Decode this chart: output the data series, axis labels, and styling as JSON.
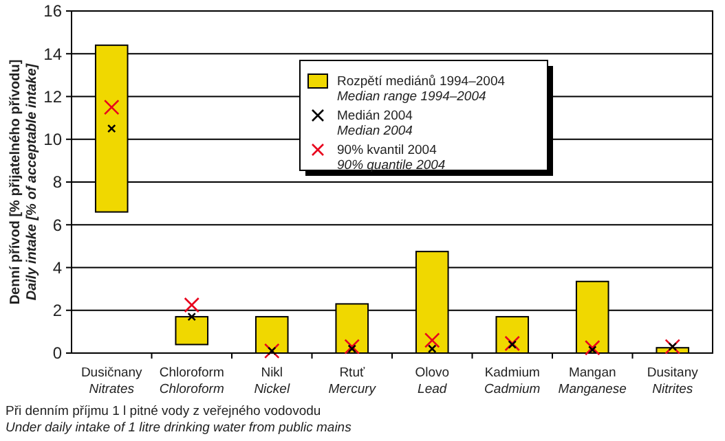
{
  "chart_data": {
    "type": "bar",
    "ylabel": "Denní přívod [% přijatelného přívodu]\nDaily intake [% of acceptable intake]",
    "categories": [
      "Dusičnany\nNitrates",
      "Chloroform\nChloroform",
      "Nikl\nNickel",
      "Rtuť\nMercury",
      "Olovo\nLead",
      "Kadmium\nCadmium",
      "Mangan\nManganese",
      "Dusitany\nNitrites"
    ],
    "series": [
      {
        "name": "Rozpětí mediánů 1994–2004\nMedian range 1994–2004",
        "color": "#f0d800",
        "base": [
          6.6,
          0.4,
          0,
          0,
          0,
          0,
          0,
          0
        ],
        "values": [
          7.8,
          1.3,
          1.7,
          2.3,
          4.75,
          1.7,
          3.35,
          0.25
        ]
      },
      {
        "type": "scatter",
        "name": "Medián 2004\nMedian 2004",
        "color": "#000000",
        "marker": "cross",
        "x": [
          "Dusičnany\nNitrates",
          "Chloroform\nChloroform",
          "Nikl\nNickel",
          "Rtuť\nMercury",
          "Olovo\nLead",
          "Kadmium\nCadmium",
          "Mangan\nManganese",
          "Dusitany\nNitrites"
        ],
        "values": [
          10.5,
          1.7,
          0.1,
          0.2,
          0.2,
          0.4,
          0.15,
          0.3
        ]
      },
      {
        "type": "scatter",
        "name": "90% kvantil 2004\n90% quantile 2004",
        "color": "#e8001c",
        "marker": "cross",
        "x": [
          "Dusičnany\nNitrates",
          "Chloroform\nChloroform",
          "Nikl\nNickel",
          "Rtuť\nMercury",
          "Olovo\nLead",
          "Kadmium\nCadmium",
          "Mangan\nManganese",
          "Dusitany\nNitrites"
        ],
        "values": [
          11.5,
          2.25,
          0.1,
          0.3,
          0.6,
          0.45,
          0.25,
          0.3
        ]
      }
    ],
    "ylim": [
      0,
      16
    ],
    "yticks": [
      0,
      2,
      4,
      6,
      8,
      10,
      12,
      14,
      16
    ],
    "grid": "y",
    "legend": "top right",
    "annotations": [
      "Při denním příjmu 1 l pitné vody z veřejného vodovodu\nUnder daily intake of 1 litre drinking water from public mains"
    ]
  }
}
